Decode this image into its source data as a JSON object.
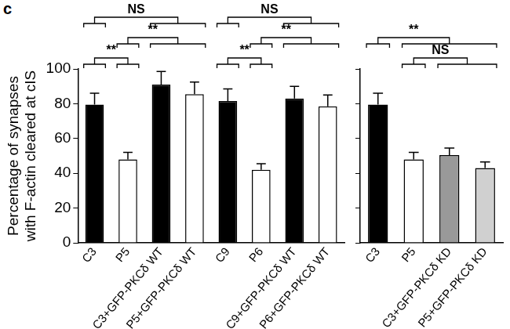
{
  "panel_label": "c",
  "chart_data": [
    {
      "type": "bar",
      "categories": [
        "C3",
        "P5",
        "C3+GFP-PKCδ WT",
        "P5+GFP-PKCδ WT",
        "C9",
        "P6",
        "C9+GFP-PKCδ WT",
        "P6+GFP-PKCδ WT"
      ],
      "values": [
        79.5,
        48,
        91,
        85.5,
        81.5,
        42,
        83,
        78.5
      ],
      "errors": [
        6.5,
        4,
        7.5,
        7,
        7,
        3.5,
        7,
        6.5
      ],
      "colors": [
        "#000000",
        "#ffffff",
        "#000000",
        "#ffffff",
        "#000000",
        "#ffffff",
        "#000000",
        "#ffffff"
      ],
      "y_label": [
        "Percentage of synapses",
        "with F-actin cleared at cIS"
      ],
      "ylim": [
        0,
        100
      ],
      "yticks": [
        0,
        20,
        40,
        60,
        80,
        100
      ],
      "grid": false,
      "comparisons": [
        {
          "groups": [
            [
              0
            ],
            [
              1
            ]
          ],
          "label": "**"
        },
        {
          "groups": [
            [
              1
            ],
            [
              2,
              3
            ]
          ],
          "label": "**"
        },
        {
          "groups": [
            [
              0
            ],
            [
              2,
              3
            ]
          ],
          "label": "NS"
        },
        {
          "groups": [
            [
              4
            ],
            [
              5
            ]
          ],
          "label": "**"
        },
        {
          "groups": [
            [
              5
            ],
            [
              6,
              7
            ]
          ],
          "label": "**"
        },
        {
          "groups": [
            [
              4
            ],
            [
              6,
              7
            ]
          ],
          "label": "NS"
        }
      ]
    },
    {
      "type": "bar",
      "categories": [
        "C3",
        "P5",
        "C3+GFP-PKCδ KD",
        "P5+GFP-PKCδ KD"
      ],
      "values": [
        79.5,
        48,
        50.5,
        43
      ],
      "errors": [
        6.5,
        4,
        4,
        3.5
      ],
      "colors": [
        "#000000",
        "#ffffff",
        "#999999",
        "#d0d0d0"
      ],
      "ylim": [
        0,
        100
      ],
      "yticks": [
        0,
        20,
        40,
        60,
        80,
        100
      ],
      "grid": false,
      "tick_labels": "x",
      "comparisons": [
        {
          "groups": [
            [
              1
            ],
            [
              2,
              3
            ]
          ],
          "label": "NS"
        },
        {
          "groups": [
            [
              0
            ],
            [
              1,
              2,
              3
            ]
          ],
          "label": "**"
        }
      ]
    }
  ]
}
